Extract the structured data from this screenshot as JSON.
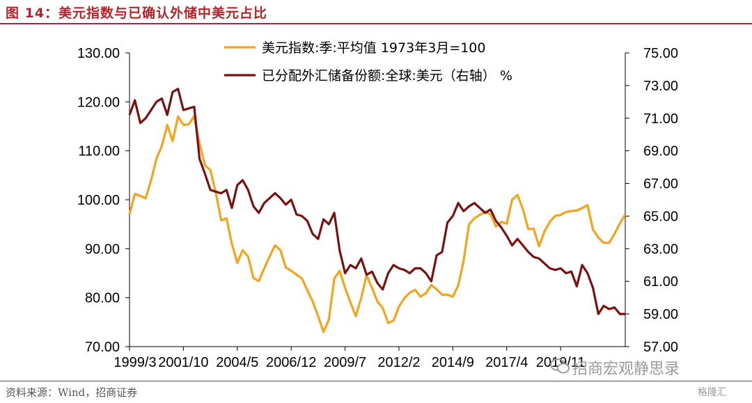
{
  "header": {
    "title": "图 14：美元指数与已确认外储中美元占比"
  },
  "footer": {
    "source": "资料来源：Wind，招商证券",
    "watermark": "招商宏观静思录",
    "watermark2": "格隆汇"
  },
  "colors": {
    "brand": "#b5232a",
    "series_usd_index": "#f5a31a",
    "series_usd_share": "#7a1010"
  },
  "chart_data": {
    "type": "line",
    "title": "",
    "xlabel": "",
    "ylabel": "",
    "x_tick_labels": [
      "1999/3",
      "2001/10",
      "2004/5",
      "2006/12",
      "2009/7",
      "2012/2",
      "2014/9",
      "2017/4",
      "2019/11"
    ],
    "y_left": {
      "lim": [
        70,
        130
      ],
      "ticks": [
        "70.00",
        "80.00",
        "90.00",
        "100.00",
        "110.00",
        "120.00",
        "130.00"
      ]
    },
    "y_right": {
      "lim": [
        57,
        75
      ],
      "ticks": [
        "57.00",
        "59.00",
        "61.00",
        "63.00",
        "65.00",
        "67.00",
        "69.00",
        "71.00",
        "73.00",
        "75.00"
      ]
    },
    "grid": false,
    "legend_placement": "top-center",
    "x": [
      "1999Q1",
      "1999Q2",
      "1999Q3",
      "1999Q4",
      "2000Q1",
      "2000Q2",
      "2000Q3",
      "2000Q4",
      "2001Q1",
      "2001Q2",
      "2001Q3",
      "2001Q4",
      "2002Q1",
      "2002Q2",
      "2002Q3",
      "2002Q4",
      "2003Q1",
      "2003Q2",
      "2003Q3",
      "2003Q4",
      "2004Q1",
      "2004Q2",
      "2004Q3",
      "2004Q4",
      "2005Q1",
      "2005Q2",
      "2005Q3",
      "2005Q4",
      "2006Q1",
      "2006Q2",
      "2006Q3",
      "2006Q4",
      "2007Q1",
      "2007Q2",
      "2007Q3",
      "2007Q4",
      "2008Q1",
      "2008Q2",
      "2008Q3",
      "2008Q4",
      "2009Q1",
      "2009Q2",
      "2009Q3",
      "2009Q4",
      "2010Q1",
      "2010Q2",
      "2010Q3",
      "2010Q4",
      "2011Q1",
      "2011Q2",
      "2011Q3",
      "2011Q4",
      "2012Q1",
      "2012Q2",
      "2012Q3",
      "2012Q4",
      "2013Q1",
      "2013Q2",
      "2013Q3",
      "2013Q4",
      "2014Q1",
      "2014Q2",
      "2014Q3",
      "2014Q4",
      "2015Q1",
      "2015Q2",
      "2015Q3",
      "2015Q4",
      "2016Q1",
      "2016Q2",
      "2016Q3",
      "2016Q4",
      "2017Q1",
      "2017Q2",
      "2017Q3",
      "2017Q4",
      "2018Q1",
      "2018Q2",
      "2018Q3",
      "2018Q4",
      "2019Q1",
      "2019Q2",
      "2019Q3",
      "2019Q4",
      "2020Q1",
      "2020Q2",
      "2020Q3",
      "2020Q4",
      "2021Q1",
      "2021Q2",
      "2021Q3",
      "2021Q4",
      "2022Q1"
    ],
    "series": [
      {
        "name": "美元指数:季:平均值 1973年3月=100",
        "axis": "left",
        "values": [
          97.0,
          101.2,
          100.8,
          100.3,
          104.0,
          108.4,
          111.0,
          115.3,
          112.0,
          117.0,
          115.3,
          115.4,
          117.1,
          111.5,
          107.0,
          106.1,
          101.5,
          95.8,
          96.2,
          91.0,
          87.1,
          89.7,
          88.4,
          84.0,
          83.4,
          86.0,
          88.4,
          90.7,
          89.7,
          86.2,
          85.5,
          84.7,
          83.9,
          81.5,
          79.2,
          76.2,
          73.0,
          75.5,
          83.9,
          85.5,
          82.0,
          79.0,
          76.2,
          80.0,
          84.6,
          82.0,
          79.2,
          77.9,
          74.8,
          75.3,
          78.2,
          79.9,
          81.0,
          81.6,
          80.2,
          80.9,
          82.6,
          81.7,
          80.6,
          80.6,
          80.2,
          82.5,
          87.5,
          95.0,
          96.2,
          96.9,
          97.5,
          97.0,
          94.5,
          95.5,
          95.1,
          100.0,
          101.0,
          98.1,
          94.0,
          94.1,
          90.5,
          93.5,
          95.5,
          96.7,
          96.9,
          97.5,
          97.7,
          97.8,
          98.3,
          98.9,
          93.9,
          92.3,
          91.2,
          91.2,
          93.0,
          95.2,
          97.0
        ]
      },
      {
        "name": "已分配外汇储备份额:全球:美元（右轴） %",
        "axis": "right",
        "values": [
          71.2,
          72.1,
          70.7,
          71.0,
          71.5,
          72.0,
          72.2,
          71.2,
          72.6,
          72.8,
          71.5,
          71.6,
          71.7,
          68.5,
          67.6,
          66.6,
          66.5,
          66.4,
          66.6,
          65.5,
          66.9,
          67.2,
          66.6,
          65.6,
          65.2,
          65.8,
          66.1,
          66.4,
          66.1,
          65.7,
          66.0,
          65.1,
          65.0,
          64.7,
          63.9,
          63.6,
          64.8,
          64.5,
          65.2,
          62.9,
          61.5,
          62.0,
          61.8,
          62.4,
          61.4,
          61.6,
          60.9,
          60.5,
          61.5,
          62.0,
          61.8,
          61.7,
          61.5,
          61.8,
          61.8,
          61.5,
          61.0,
          62.6,
          62.8,
          64.6,
          65.0,
          65.8,
          65.3,
          65.6,
          65.8,
          65.5,
          65.2,
          65.4,
          64.7,
          64.3,
          63.8,
          63.2,
          63.6,
          63.2,
          62.8,
          62.5,
          62.4,
          62.1,
          61.8,
          61.7,
          61.8,
          61.5,
          61.6,
          60.7,
          62.0,
          61.5,
          60.6,
          59.0,
          59.5,
          59.3,
          59.4,
          59.0,
          59.0
        ]
      }
    ]
  }
}
